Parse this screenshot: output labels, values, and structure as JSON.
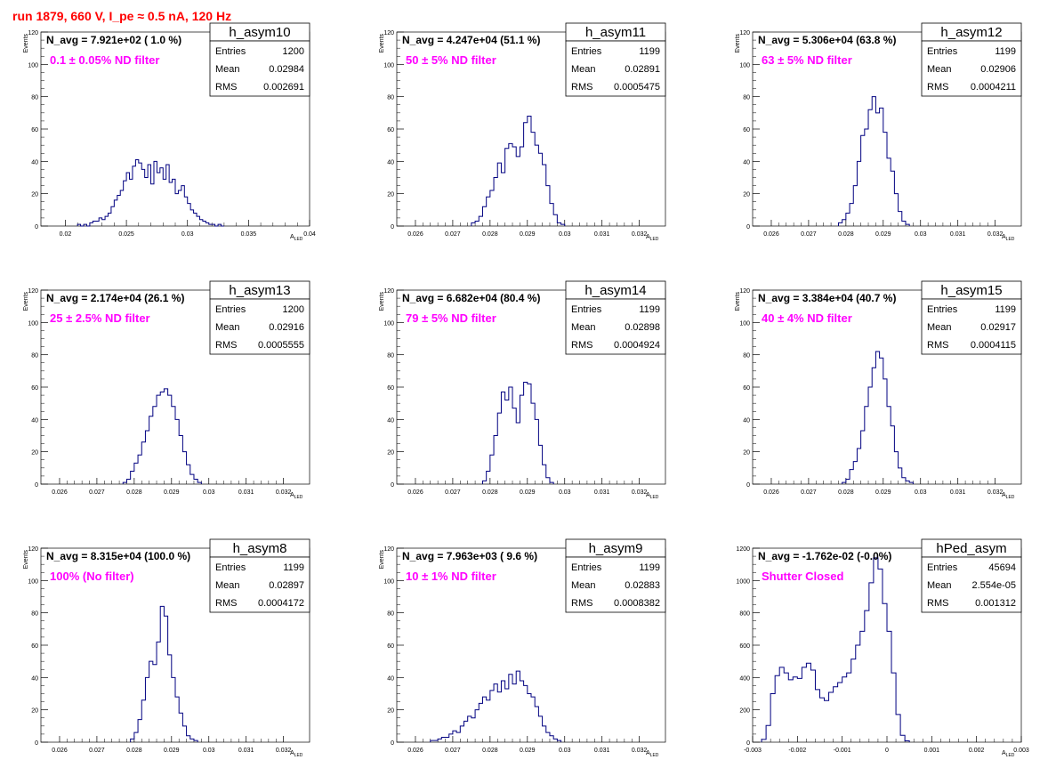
{
  "page": {
    "title": "run 1879,   660 V, I_pe ≈ 0.5 nA, 120 Hz",
    "colors": {
      "title": "#ff0000",
      "annotation": "#ff00ff",
      "histogram": "#000080",
      "axis": "#000000"
    }
  },
  "stats_labels": {
    "entries": "Entries",
    "mean": "Mean",
    "rms": "RMS"
  },
  "chart_data": [
    {
      "type": "histogram",
      "name": "h_asym10",
      "navg": "N_avg = 7.921e+02 ( 1.0 %)",
      "annotation": "0.1 ± 0.05% ND filter",
      "stats": {
        "entries": "1200",
        "mean": "0.02984",
        "rms": "0.002691"
      },
      "xlabel": "A_LED",
      "ylabel": "Events",
      "xlim": [
        0.018,
        0.04
      ],
      "ylim": [
        0,
        120
      ],
      "xticks": [
        "0.02",
        "0.025",
        "0.03",
        "0.035",
        "0.04"
      ],
      "yticks": [
        "0",
        "20",
        "40",
        "60",
        "80",
        "100",
        "120"
      ],
      "xticks_num": [
        0.02,
        0.025,
        0.03,
        0.035,
        0.04
      ],
      "bins": {
        "xmin": 0.021,
        "width": 0.00025,
        "values": [
          1,
          0,
          1,
          0,
          2,
          3,
          3,
          5,
          4,
          6,
          8,
          12,
          16,
          19,
          22,
          28,
          33,
          29,
          37,
          41,
          39,
          35,
          30,
          38,
          26,
          40,
          33,
          36,
          29,
          38,
          27,
          29,
          20,
          22,
          25,
          18,
          14,
          10,
          8,
          6,
          4,
          3,
          2,
          1,
          1,
          0,
          1,
          0
        ]
      }
    },
    {
      "type": "histogram",
      "name": "h_asym11",
      "navg": "N_avg = 4.247e+04 (51.1 %)",
      "annotation": "50 ± 5% ND filter",
      "stats": {
        "entries": "1199",
        "mean": "0.02891",
        "rms": "0.0005475"
      },
      "xlabel": "A_LED",
      "ylabel": "Events",
      "xlim": [
        0.0255,
        0.0327
      ],
      "ylim": [
        0,
        120
      ],
      "xticks": [
        "0.026",
        "0.027",
        "0.028",
        "0.029",
        "0.03",
        "0.031",
        "0.032"
      ],
      "yticks": [
        "0",
        "20",
        "40",
        "60",
        "80",
        "100",
        "120"
      ],
      "xticks_num": [
        0.026,
        0.027,
        0.028,
        0.029,
        0.03,
        0.031,
        0.032
      ],
      "bins": {
        "xmin": 0.0275,
        "width": 0.0001,
        "values": [
          2,
          3,
          6,
          12,
          18,
          22,
          30,
          39,
          33,
          48,
          51,
          49,
          43,
          49,
          64,
          68,
          58,
          50,
          45,
          38,
          25,
          14,
          7,
          2,
          1
        ]
      }
    },
    {
      "type": "histogram",
      "name": "h_asym12",
      "navg": "N_avg = 5.306e+04 (63.8 %)",
      "annotation": "63 ± 5% ND filter",
      "stats": {
        "entries": "1199",
        "mean": "0.02906",
        "rms": "0.0004211"
      },
      "xlabel": "A_LED",
      "ylabel": "Events",
      "xlim": [
        0.0255,
        0.0327
      ],
      "ylim": [
        0,
        120
      ],
      "xticks": [
        "0.026",
        "0.027",
        "0.028",
        "0.029",
        "0.03",
        "0.031",
        "0.032"
      ],
      "yticks": [
        "0",
        "20",
        "40",
        "60",
        "80",
        "100",
        "120"
      ],
      "xticks_num": [
        0.026,
        0.027,
        0.028,
        0.029,
        0.03,
        0.031,
        0.032
      ],
      "bins": {
        "xmin": 0.0278,
        "width": 0.0001,
        "values": [
          2,
          4,
          8,
          14,
          25,
          40,
          56,
          60,
          72,
          80,
          70,
          73,
          58,
          42,
          34,
          20,
          9,
          3,
          1
        ]
      }
    },
    {
      "type": "histogram",
      "name": "h_asym13",
      "navg": "N_avg = 2.174e+04 (26.1 %)",
      "annotation": "25 ± 2.5% ND filter",
      "stats": {
        "entries": "1200",
        "mean": "0.02916",
        "rms": "0.0005555"
      },
      "xlabel": "A_LED",
      "ylabel": "Events",
      "xlim": [
        0.0255,
        0.0327
      ],
      "ylim": [
        0,
        120
      ],
      "xticks": [
        "0.026",
        "0.027",
        "0.028",
        "0.029",
        "0.03",
        "0.031",
        "0.032"
      ],
      "yticks": [
        "0",
        "20",
        "40",
        "60",
        "80",
        "100",
        "120"
      ],
      "xticks_num": [
        0.026,
        0.027,
        0.028,
        0.029,
        0.03,
        0.031,
        0.032
      ],
      "bins": {
        "xmin": 0.0277,
        "width": 0.0001,
        "values": [
          1,
          3,
          8,
          13,
          18,
          26,
          33,
          42,
          48,
          55,
          57,
          59,
          55,
          48,
          40,
          30,
          20,
          12,
          6,
          3,
          1
        ]
      }
    },
    {
      "type": "histogram",
      "name": "h_asym14",
      "navg": "N_avg = 6.682e+04 (80.4 %)",
      "annotation": "79 ± 5% ND filter",
      "stats": {
        "entries": "1199",
        "mean": "0.02898",
        "rms": "0.0004924"
      },
      "xlabel": "A_LED",
      "ylabel": "Events",
      "xlim": [
        0.0255,
        0.0327
      ],
      "ylim": [
        0,
        120
      ],
      "xticks": [
        "0.026",
        "0.027",
        "0.028",
        "0.029",
        "0.03",
        "0.031",
        "0.032"
      ],
      "yticks": [
        "0",
        "20",
        "40",
        "60",
        "80",
        "100",
        "120"
      ],
      "xticks_num": [
        0.026,
        0.027,
        0.028,
        0.029,
        0.03,
        0.031,
        0.032
      ],
      "bins": {
        "xmin": 0.0278,
        "width": 0.0001,
        "values": [
          2,
          8,
          18,
          30,
          44,
          57,
          52,
          60,
          47,
          38,
          55,
          63,
          62,
          50,
          40,
          24,
          12,
          4,
          1
        ]
      }
    },
    {
      "type": "histogram",
      "name": "h_asym15",
      "navg": "N_avg = 3.384e+04 (40.7 %)",
      "annotation": "40 ± 4% ND filter",
      "stats": {
        "entries": "1199",
        "mean": "0.02917",
        "rms": "0.0004115"
      },
      "xlabel": "A_LED",
      "ylabel": "Events",
      "xlim": [
        0.0255,
        0.0327
      ],
      "ylim": [
        0,
        120
      ],
      "xticks": [
        "0.026",
        "0.027",
        "0.028",
        "0.029",
        "0.03",
        "0.031",
        "0.032"
      ],
      "yticks": [
        "0",
        "20",
        "40",
        "60",
        "80",
        "100",
        "120"
      ],
      "xticks_num": [
        0.026,
        0.027,
        0.028,
        0.029,
        0.03,
        0.031,
        0.032
      ],
      "bins": {
        "xmin": 0.0279,
        "width": 0.0001,
        "values": [
          1,
          3,
          9,
          14,
          22,
          33,
          48,
          60,
          72,
          82,
          78,
          65,
          48,
          36,
          20,
          10,
          4,
          2,
          1
        ]
      }
    },
    {
      "type": "histogram",
      "name": "h_asym8",
      "navg": "N_avg = 8.315e+04 (100.0 %)",
      "annotation": "100% (No filter)",
      "stats": {
        "entries": "1199",
        "mean": "0.02897",
        "rms": "0.0004172"
      },
      "xlabel": "A_LED",
      "ylabel": "Events",
      "xlim": [
        0.0255,
        0.0327
      ],
      "ylim": [
        0,
        120
      ],
      "xticks": [
        "0.026",
        "0.027",
        "0.028",
        "0.029",
        "0.03",
        "0.031",
        "0.032"
      ],
      "yticks": [
        "0",
        "20",
        "40",
        "60",
        "80",
        "100",
        "120"
      ],
      "xticks_num": [
        0.026,
        0.027,
        0.028,
        0.029,
        0.03,
        0.031,
        0.032
      ],
      "bins": {
        "xmin": 0.0279,
        "width": 0.0001,
        "values": [
          2,
          6,
          14,
          26,
          40,
          50,
          48,
          62,
          84,
          78,
          54,
          40,
          28,
          18,
          10,
          4,
          2,
          1
        ]
      }
    },
    {
      "type": "histogram",
      "name": "h_asym9",
      "navg": "N_avg = 7.963e+03 ( 9.6 %)",
      "annotation": "10 ± 1% ND filter",
      "stats": {
        "entries": "1199",
        "mean": "0.02883",
        "rms": "0.0008382"
      },
      "xlabel": "A_LED",
      "ylabel": "Events",
      "xlim": [
        0.0255,
        0.0327
      ],
      "ylim": [
        0,
        120
      ],
      "xticks": [
        "0.026",
        "0.027",
        "0.028",
        "0.029",
        "0.03",
        "0.031",
        "0.032"
      ],
      "yticks": [
        "0",
        "20",
        "40",
        "60",
        "80",
        "100",
        "120"
      ],
      "xticks_num": [
        0.026,
        0.027,
        0.028,
        0.029,
        0.03,
        0.031,
        0.032
      ],
      "bins": {
        "xmin": 0.0264,
        "width": 0.0001,
        "values": [
          1,
          1,
          2,
          3,
          3,
          5,
          7,
          6,
          10,
          13,
          16,
          15,
          20,
          24,
          28,
          26,
          32,
          36,
          31,
          38,
          33,
          42,
          36,
          44,
          38,
          35,
          30,
          28,
          22,
          16,
          10,
          6,
          4,
          2,
          1
        ]
      }
    },
    {
      "type": "histogram",
      "name": "hPed_asym",
      "navg": "N_avg = -1.762e-02 (-0.0%)",
      "annotation": "Shutter Closed",
      "stats": {
        "entries": "45694",
        "mean": "2.554e-05",
        "rms": "0.001312"
      },
      "xlabel": "A_LED",
      "ylabel": "",
      "xlim": [
        -0.003,
        0.003
      ],
      "ylim": [
        0,
        1400
      ],
      "xticks": [
        "-0.003",
        "-0.002",
        "-0.001",
        "0",
        "0.001",
        "0.002",
        "0.003"
      ],
      "yticks": [
        "0",
        "200",
        "400",
        "600",
        "800",
        "1000",
        "1200"
      ],
      "xticks_num": [
        -0.003,
        -0.002,
        -0.001,
        0,
        0.001,
        0.002,
        0.003
      ],
      "bins": {
        "xmin": -0.0028,
        "width": 0.0001,
        "values": [
          20,
          120,
          350,
          480,
          540,
          500,
          450,
          470,
          460,
          540,
          570,
          520,
          380,
          320,
          300,
          360,
          400,
          430,
          470,
          500,
          600,
          700,
          800,
          950,
          1150,
          1330,
          1250,
          1000,
          800,
          500,
          200,
          50,
          10
        ]
      }
    }
  ]
}
